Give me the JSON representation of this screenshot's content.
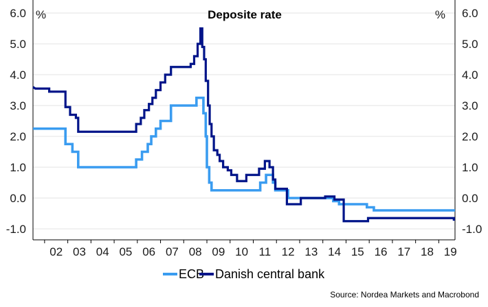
{
  "chart_data": {
    "type": "line",
    "title": "Deposite rate",
    "y_unit_left": "%",
    "y_unit_right": "%",
    "ylim": [
      -1.0,
      6.0
    ],
    "y_ticks": [
      "6.0",
      "5.0",
      "4.0",
      "3.0",
      "2.0",
      "1.0",
      "0.0",
      "-1.0"
    ],
    "x_tick_labels": [
      "02",
      "03",
      "04",
      "05",
      "06",
      "07",
      "08",
      "09",
      "10",
      "11",
      "12",
      "13",
      "14",
      "15",
      "16",
      "17",
      "18",
      "19"
    ],
    "xlim": [
      2001.5,
      2019.7
    ],
    "grid": true,
    "legend_placement": "bottom-center",
    "source": "Source: Nordea Markets and Macrobond",
    "series": [
      {
        "name": "ECB",
        "color": "#3a9cf0",
        "points": [
          [
            2001.5,
            2.25
          ],
          [
            2002.9,
            2.25
          ],
          [
            2002.9,
            1.75
          ],
          [
            2003.2,
            1.75
          ],
          [
            2003.2,
            1.5
          ],
          [
            2003.45,
            1.5
          ],
          [
            2003.45,
            1.0
          ],
          [
            2005.95,
            1.0
          ],
          [
            2005.95,
            1.25
          ],
          [
            2006.2,
            1.25
          ],
          [
            2006.2,
            1.5
          ],
          [
            2006.45,
            1.5
          ],
          [
            2006.45,
            1.75
          ],
          [
            2006.6,
            1.75
          ],
          [
            2006.6,
            2.0
          ],
          [
            2006.8,
            2.0
          ],
          [
            2006.8,
            2.25
          ],
          [
            2007.0,
            2.25
          ],
          [
            2007.0,
            2.5
          ],
          [
            2007.45,
            2.5
          ],
          [
            2007.45,
            3.0
          ],
          [
            2008.55,
            3.0
          ],
          [
            2008.55,
            3.25
          ],
          [
            2008.85,
            3.25
          ],
          [
            2008.85,
            2.75
          ],
          [
            2008.95,
            2.75
          ],
          [
            2008.95,
            2.0
          ],
          [
            2009.0,
            2.0
          ],
          [
            2009.0,
            1.0
          ],
          [
            2009.1,
            1.0
          ],
          [
            2009.1,
            0.5
          ],
          [
            2009.2,
            0.5
          ],
          [
            2009.2,
            0.25
          ],
          [
            2011.3,
            0.25
          ],
          [
            2011.3,
            0.5
          ],
          [
            2011.55,
            0.5
          ],
          [
            2011.55,
            0.75
          ],
          [
            2011.85,
            0.75
          ],
          [
            2011.85,
            0.5
          ],
          [
            2011.95,
            0.5
          ],
          [
            2011.95,
            0.25
          ],
          [
            2012.5,
            0.25
          ],
          [
            2012.5,
            0.0
          ],
          [
            2014.45,
            0.0
          ],
          [
            2014.45,
            -0.1
          ],
          [
            2014.7,
            -0.1
          ],
          [
            2014.7,
            -0.2
          ],
          [
            2015.9,
            -0.2
          ],
          [
            2015.9,
            -0.3
          ],
          [
            2016.2,
            -0.3
          ],
          [
            2016.2,
            -0.4
          ],
          [
            2019.7,
            -0.4
          ]
        ]
      },
      {
        "name": "Danish central bank",
        "color": "#001489",
        "points": [
          [
            2001.5,
            3.6
          ],
          [
            2001.6,
            3.55
          ],
          [
            2002.2,
            3.55
          ],
          [
            2002.2,
            3.45
          ],
          [
            2002.9,
            3.45
          ],
          [
            2002.9,
            2.95
          ],
          [
            2003.1,
            2.95
          ],
          [
            2003.1,
            2.7
          ],
          [
            2003.35,
            2.7
          ],
          [
            2003.35,
            2.6
          ],
          [
            2003.45,
            2.6
          ],
          [
            2003.45,
            2.15
          ],
          [
            2005.95,
            2.15
          ],
          [
            2005.95,
            2.4
          ],
          [
            2006.15,
            2.4
          ],
          [
            2006.15,
            2.6
          ],
          [
            2006.3,
            2.6
          ],
          [
            2006.3,
            2.85
          ],
          [
            2006.5,
            2.85
          ],
          [
            2006.5,
            3.05
          ],
          [
            2006.65,
            3.05
          ],
          [
            2006.65,
            3.25
          ],
          [
            2006.8,
            3.25
          ],
          [
            2006.8,
            3.5
          ],
          [
            2007.0,
            3.5
          ],
          [
            2007.0,
            3.75
          ],
          [
            2007.2,
            3.75
          ],
          [
            2007.2,
            4.0
          ],
          [
            2007.45,
            4.0
          ],
          [
            2007.45,
            4.25
          ],
          [
            2008.3,
            4.25
          ],
          [
            2008.3,
            4.35
          ],
          [
            2008.45,
            4.35
          ],
          [
            2008.45,
            4.6
          ],
          [
            2008.6,
            4.6
          ],
          [
            2008.6,
            5.0
          ],
          [
            2008.72,
            5.0
          ],
          [
            2008.72,
            5.5
          ],
          [
            2008.8,
            5.5
          ],
          [
            2008.8,
            4.9
          ],
          [
            2008.88,
            4.9
          ],
          [
            2008.88,
            4.5
          ],
          [
            2008.95,
            4.5
          ],
          [
            2008.95,
            3.8
          ],
          [
            2009.05,
            3.8
          ],
          [
            2009.05,
            3.0
          ],
          [
            2009.12,
            3.0
          ],
          [
            2009.12,
            2.4
          ],
          [
            2009.2,
            2.4
          ],
          [
            2009.2,
            2.0
          ],
          [
            2009.3,
            2.0
          ],
          [
            2009.3,
            1.55
          ],
          [
            2009.45,
            1.55
          ],
          [
            2009.45,
            1.4
          ],
          [
            2009.55,
            1.4
          ],
          [
            2009.55,
            1.2
          ],
          [
            2009.7,
            1.2
          ],
          [
            2009.7,
            1.0
          ],
          [
            2009.9,
            1.0
          ],
          [
            2009.9,
            0.9
          ],
          [
            2010.05,
            0.9
          ],
          [
            2010.05,
            0.75
          ],
          [
            2010.3,
            0.75
          ],
          [
            2010.3,
            0.55
          ],
          [
            2010.7,
            0.55
          ],
          [
            2010.7,
            0.75
          ],
          [
            2011.25,
            0.75
          ],
          [
            2011.25,
            0.95
          ],
          [
            2011.5,
            0.95
          ],
          [
            2011.5,
            1.2
          ],
          [
            2011.7,
            1.2
          ],
          [
            2011.7,
            1.0
          ],
          [
            2011.85,
            1.0
          ],
          [
            2011.85,
            0.6
          ],
          [
            2011.95,
            0.6
          ],
          [
            2011.95,
            0.3
          ],
          [
            2012.45,
            0.3
          ],
          [
            2012.45,
            -0.2
          ],
          [
            2013.05,
            -0.2
          ],
          [
            2013.05,
            0.0
          ],
          [
            2014.1,
            0.0
          ],
          [
            2014.1,
            0.05
          ],
          [
            2014.5,
            0.05
          ],
          [
            2014.5,
            -0.05
          ],
          [
            2014.9,
            -0.05
          ],
          [
            2014.9,
            -0.75
          ],
          [
            2015.95,
            -0.75
          ],
          [
            2015.95,
            -0.65
          ],
          [
            2019.65,
            -0.65
          ],
          [
            2019.65,
            -0.7
          ],
          [
            2019.7,
            -0.7
          ]
        ]
      }
    ]
  }
}
